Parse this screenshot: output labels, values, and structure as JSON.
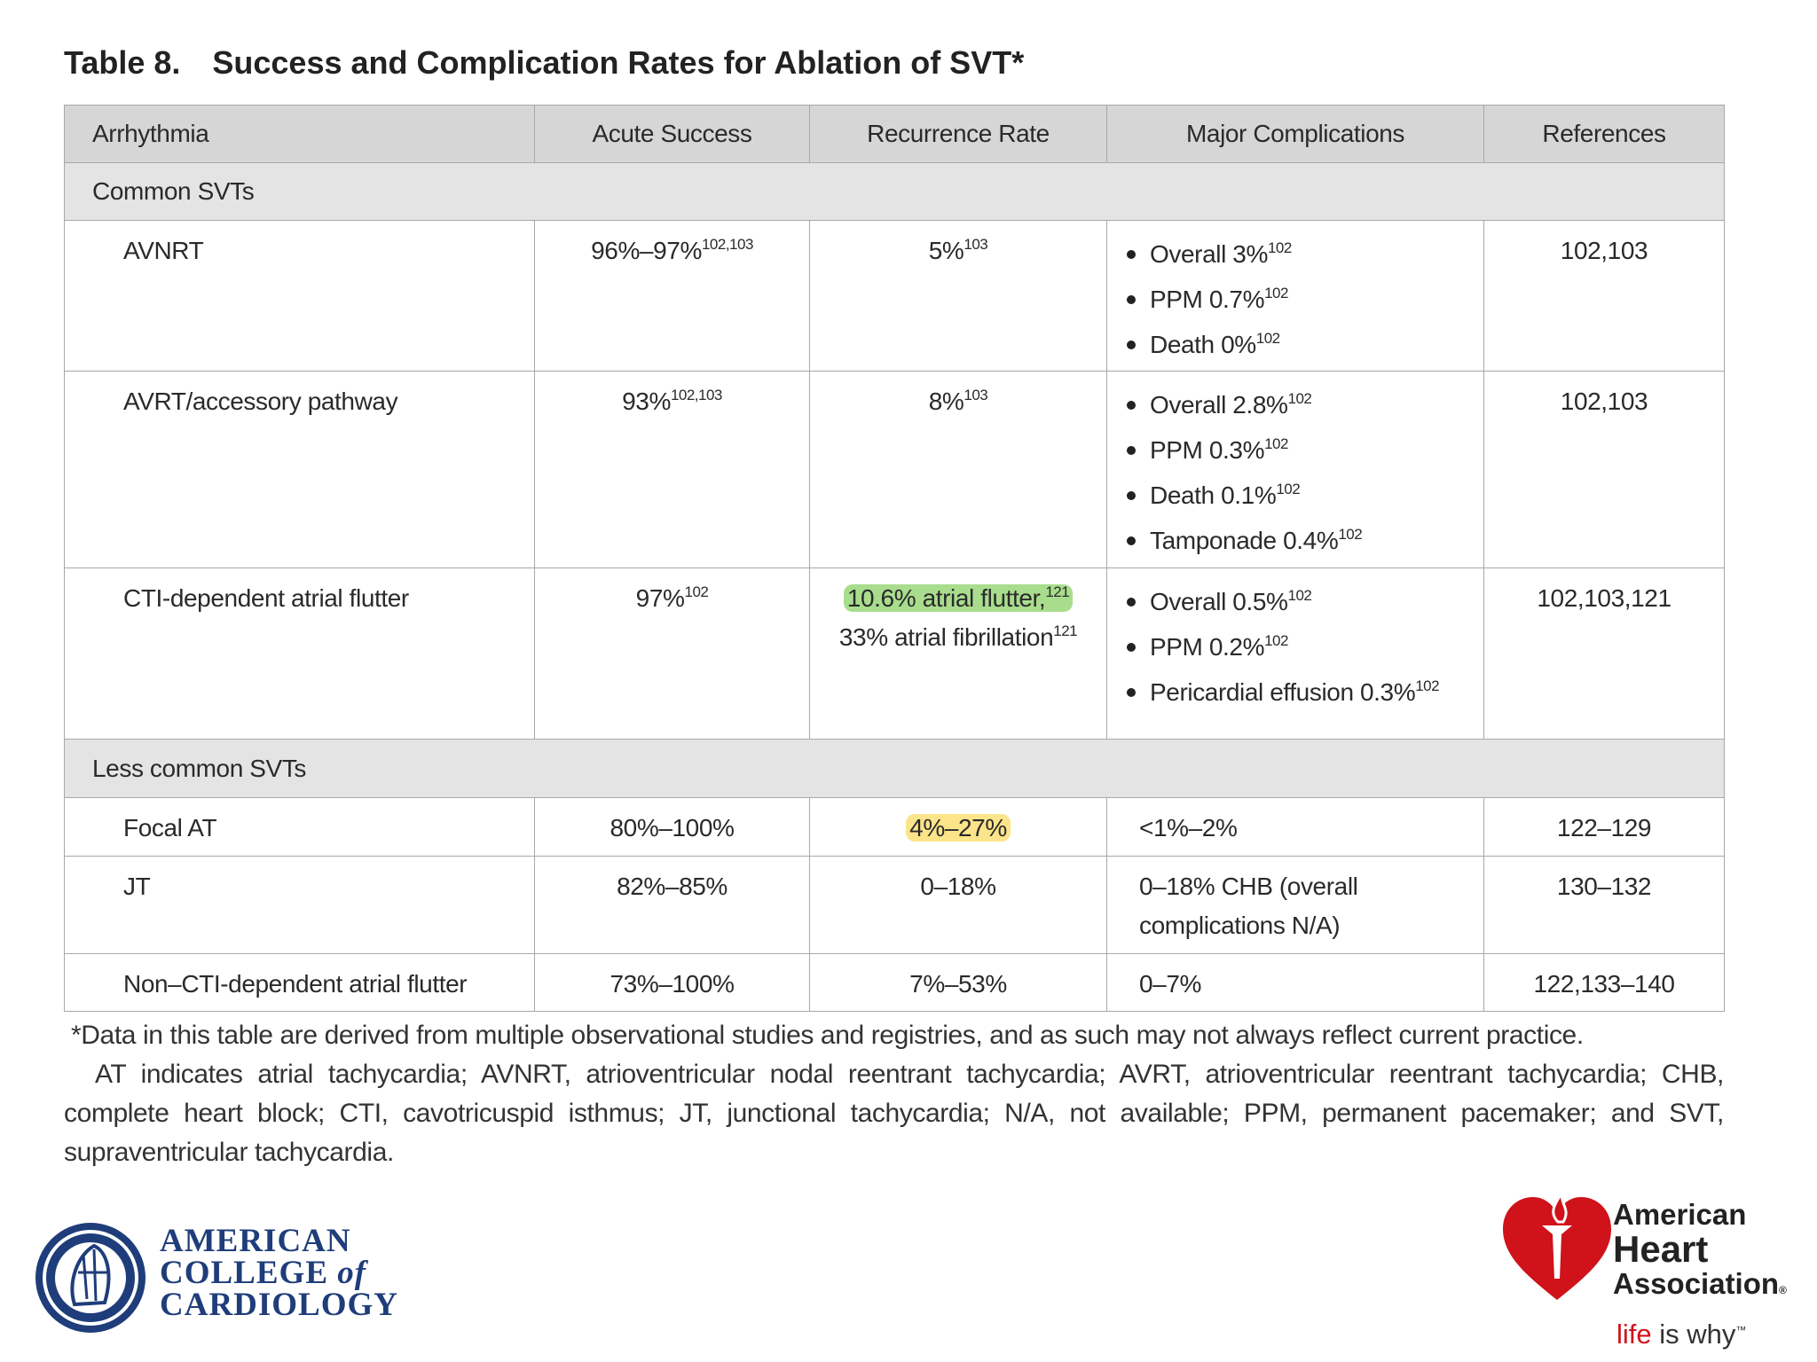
{
  "title": {
    "label": "Table 8.",
    "text": "Success and Complication Rates for Ablation of SVT*"
  },
  "table": {
    "headers": [
      "Arrhythmia",
      "Acute Success",
      "Recurrence Rate",
      "Major Complications",
      "References"
    ],
    "groups": [
      {
        "name": "Common SVTs",
        "rows": [
          {
            "arrhythmia": "AVNRT",
            "acute_success": [
              {
                "text": "96%–97%",
                "sup": "102,103"
              }
            ],
            "recurrence_rate": [
              {
                "text": "5%",
                "sup": "103"
              }
            ],
            "complications": {
              "bullets": [
                {
                  "text": "Overall 3%",
                  "sup": "102"
                },
                {
                  "text": "PPM 0.7%",
                  "sup": "102"
                },
                {
                  "text": "Death 0%",
                  "sup": "102"
                }
              ]
            },
            "references": "102,103"
          },
          {
            "arrhythmia": "AVRT/accessory pathway",
            "acute_success": [
              {
                "text": "93%",
                "sup": "102,103"
              }
            ],
            "recurrence_rate": [
              {
                "text": "8%",
                "sup": "103"
              }
            ],
            "complications": {
              "bullets": [
                {
                  "text": "Overall 2.8%",
                  "sup": "102"
                },
                {
                  "text": "PPM 0.3%",
                  "sup": "102"
                },
                {
                  "text": "Death 0.1%",
                  "sup": "102"
                },
                {
                  "text": "Tamponade 0.4%",
                  "sup": "102"
                }
              ]
            },
            "references": "102,103"
          },
          {
            "arrhythmia": "CTI-dependent atrial flutter",
            "acute_success": [
              {
                "text": "97%",
                "sup": "102"
              }
            ],
            "recurrence_rate": [
              {
                "text": "10.6% atrial flutter,",
                "sup": "121",
                "highlight": "#a9dd8e"
              },
              {
                "text": "33% atrial fibrillation",
                "sup": "121"
              }
            ],
            "complications": {
              "bullets": [
                {
                  "text": "Overall 0.5%",
                  "sup": "102"
                },
                {
                  "text": "PPM 0.2%",
                  "sup": "102"
                },
                {
                  "text": "Pericardial effusion 0.3%",
                  "sup": "102"
                }
              ]
            },
            "references": "102,103,121"
          }
        ]
      },
      {
        "name": "Less common SVTs",
        "rows": [
          {
            "arrhythmia": "Focal AT",
            "acute_success": [
              {
                "text": "80%–100%"
              }
            ],
            "recurrence_rate": [
              {
                "text": "4%–27%",
                "highlight": "#fbe48a"
              }
            ],
            "complications": {
              "lines": [
                {
                  "text": "<1%–2%"
                }
              ]
            },
            "references": "122–129"
          },
          {
            "arrhythmia": "JT",
            "acute_success": [
              {
                "text": "82%–85%"
              }
            ],
            "recurrence_rate": [
              {
                "text": "0–18%"
              }
            ],
            "complications": {
              "lines": [
                {
                  "text": "0–18% CHB (overall complications N/A)"
                }
              ]
            },
            "references": "130–132"
          },
          {
            "arrhythmia": "Non–CTI-dependent atrial flutter",
            "acute_success": [
              {
                "text": "73%–100%"
              }
            ],
            "recurrence_rate": [
              {
                "text": "7%–53%"
              }
            ],
            "complications": {
              "lines": [
                {
                  "text": "0–7%"
                }
              ]
            },
            "references": "122,133–140"
          }
        ]
      }
    ]
  },
  "footnotes": [
    "*Data in this table are derived from multiple observational studies and registries, and as such may not always reflect current practice.",
    "AT indicates atrial tachycardia; AVNRT, atrioventricular nodal reentrant tachycardia; AVRT, atrioventricular reentrant tachycardia; CHB, complete heart block; CTI, cavotricuspid isthmus; JT, junctional tachycardia; N/A, not available; PPM, permanent pacemaker; and SVT, supraventricular tachycardia."
  ],
  "logos": {
    "acc": [
      "AMERICAN",
      "COLLEGE",
      "of",
      "CARDIOLOGY"
    ],
    "aha": {
      "lines": [
        "American",
        "Heart",
        "Association"
      ],
      "registered": "®",
      "tagline": [
        "life",
        "is why"
      ],
      "trademark": "™"
    }
  }
}
